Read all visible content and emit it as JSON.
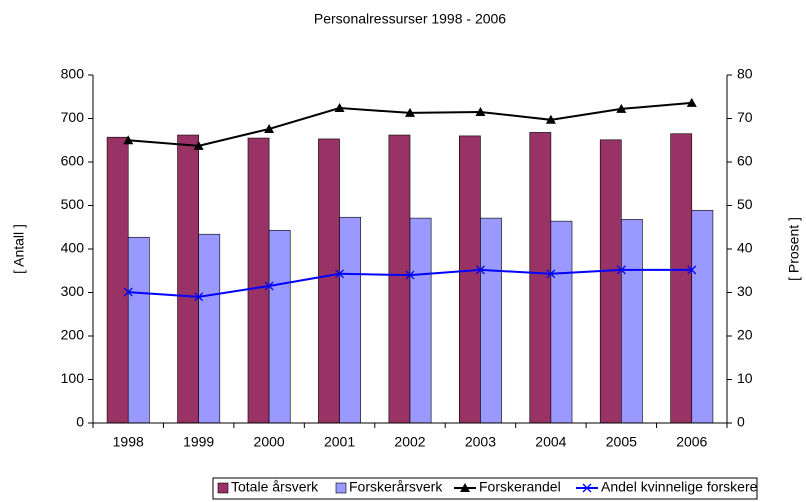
{
  "chart_data": {
    "type": "bar-line",
    "title": "Personalressurser 1998 - 2006",
    "ylabel": "[ Antall ]",
    "y2label": "[ Prosent ]",
    "categories": [
      "1998",
      "1999",
      "2000",
      "2001",
      "2002",
      "2003",
      "2004",
      "2005",
      "2006"
    ],
    "ylim": [
      0,
      800
    ],
    "yticks": [
      0,
      100,
      200,
      300,
      400,
      500,
      600,
      700,
      800
    ],
    "y2lim": [
      0,
      80
    ],
    "y2ticks": [
      0,
      10,
      20,
      30,
      40,
      50,
      60,
      70,
      80
    ],
    "series": [
      {
        "name": "Totale årsverk",
        "kind": "bar",
        "color": "#993366",
        "values": [
          657,
          662,
          655,
          653,
          662,
          660,
          668,
          651,
          665
        ]
      },
      {
        "name": "Forskerårsverk",
        "kind": "bar",
        "color": "#9999ff",
        "values": [
          427,
          434,
          443,
          473,
          471,
          471,
          464,
          468,
          489
        ]
      },
      {
        "name": "Forskerandel",
        "kind": "line",
        "marker": "triangle",
        "axis": "y2",
        "color": "#000000",
        "values": [
          65,
          63.7,
          67.6,
          72.4,
          71.3,
          71.5,
          69.7,
          72.2,
          73.6
        ]
      },
      {
        "name": "Andel kvinnelige forskere",
        "kind": "line",
        "marker": "x",
        "axis": "y2",
        "color": "#0000ff",
        "values": [
          30.1,
          29,
          31.5,
          34.3,
          34,
          35.2,
          34.3,
          35.2,
          35.2
        ]
      }
    ]
  }
}
